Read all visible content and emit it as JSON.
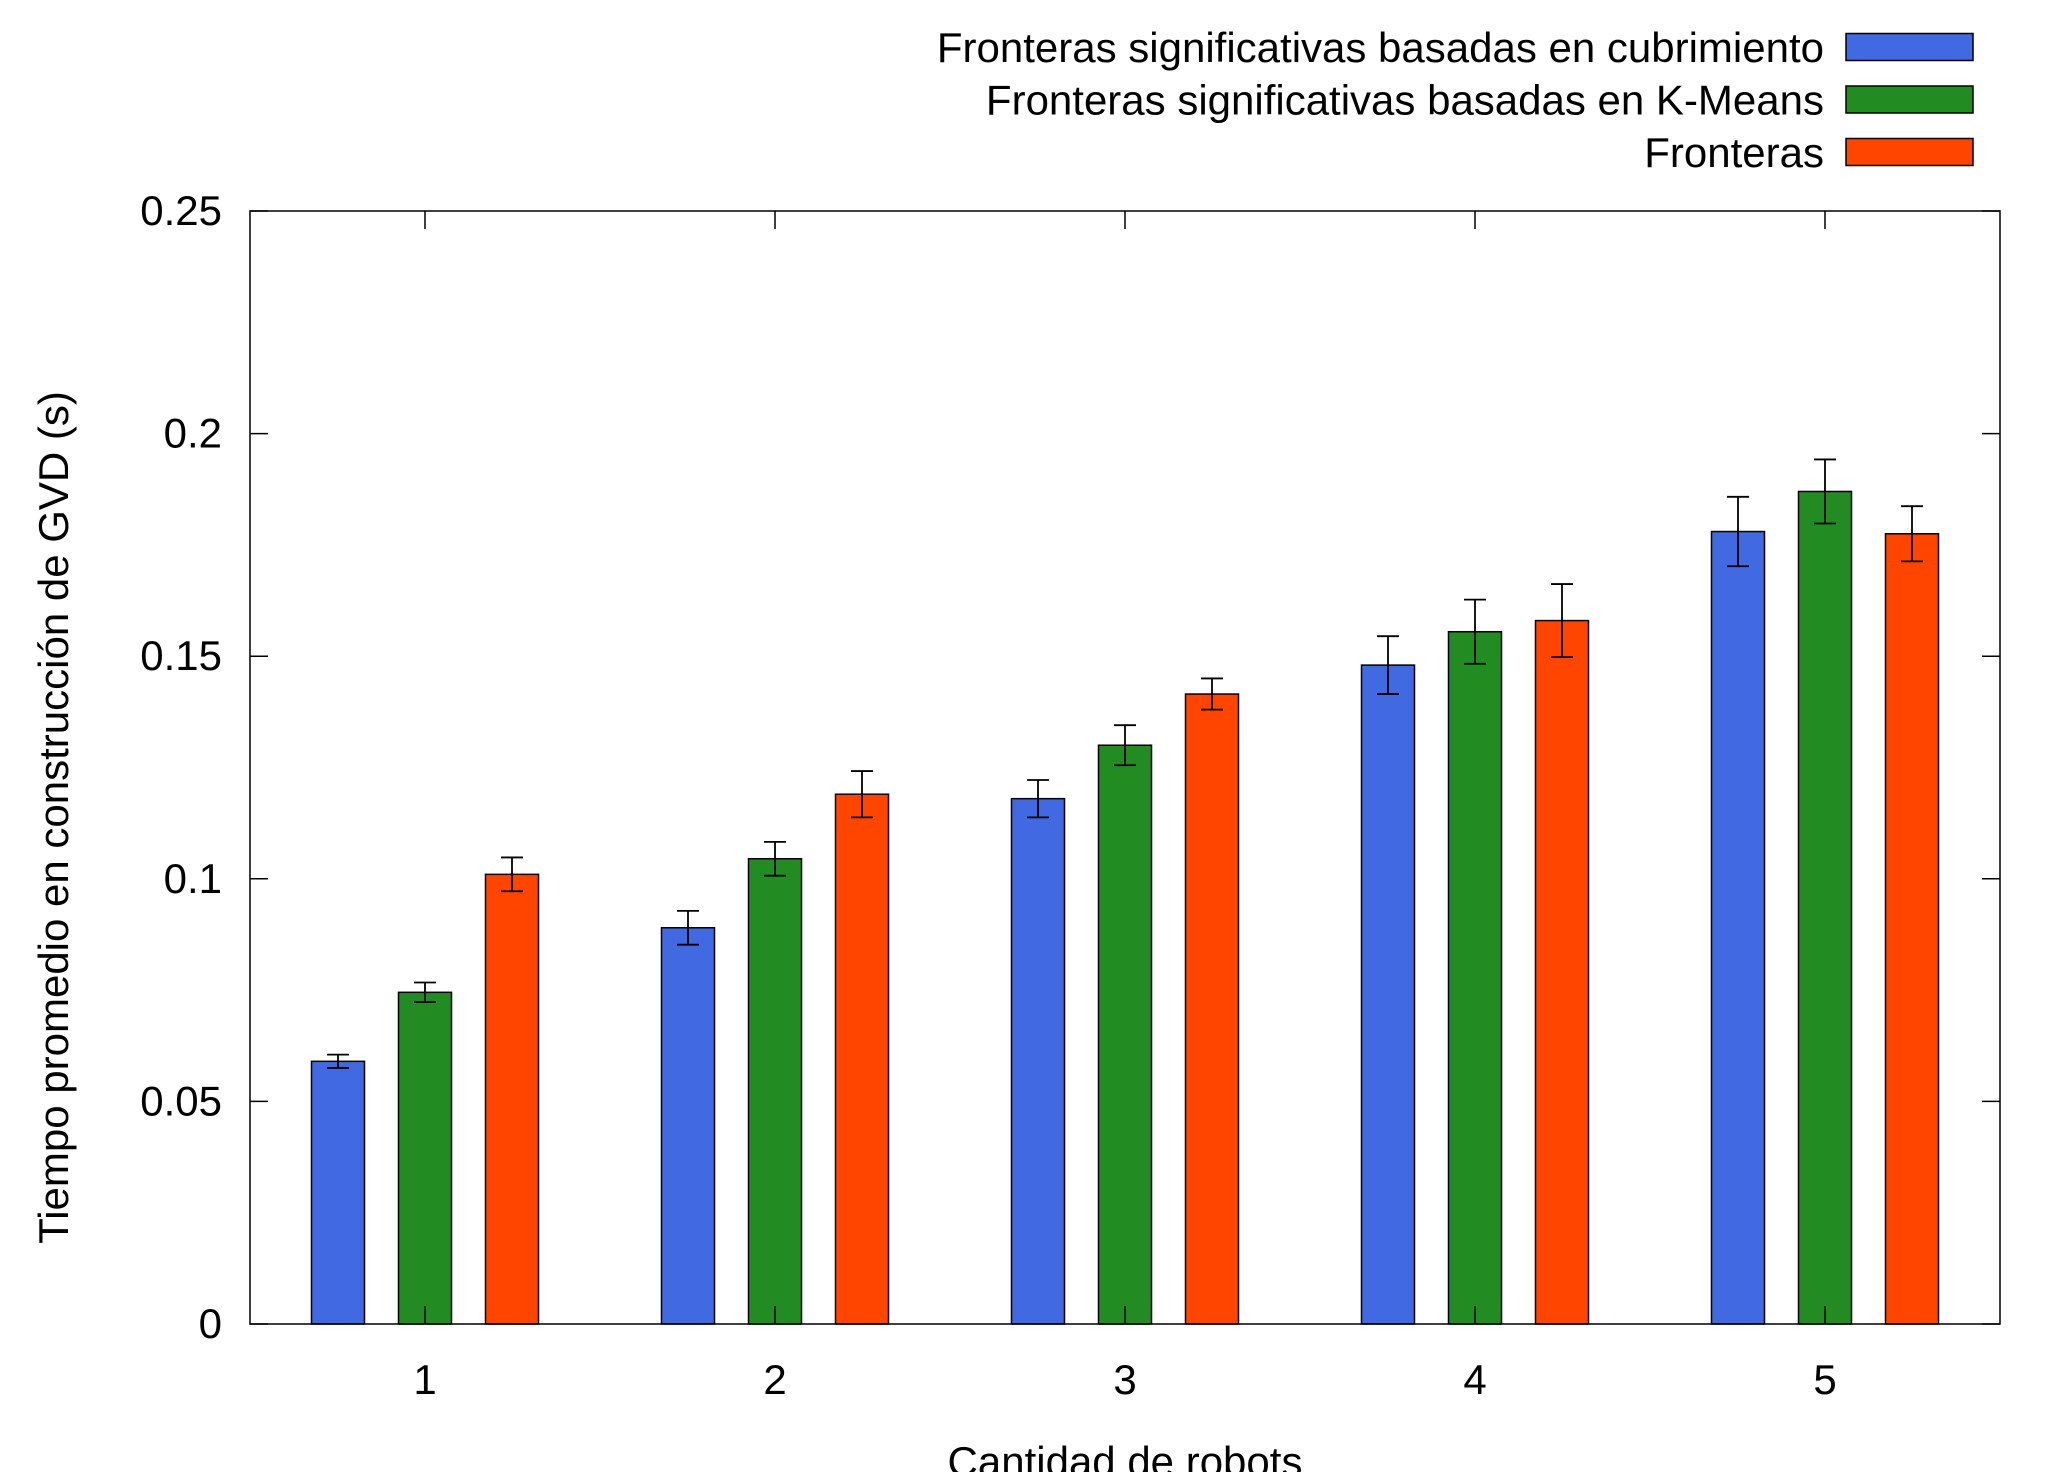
{
  "chart_data": {
    "type": "bar",
    "title": "",
    "xlabel": "Cantidad de robots",
    "ylabel": "Tiempo promedio en construcción de GVD (s)",
    "categories": [
      "1",
      "2",
      "3",
      "4",
      "5"
    ],
    "ylim": [
      0,
      0.25
    ],
    "yticks": [
      0,
      0.05,
      0.1,
      0.15,
      0.2,
      0.25
    ],
    "ytick_labels": [
      "0",
      "0.05",
      "0.1",
      "0.15",
      "0.2",
      "0.25"
    ],
    "grid": false,
    "legend_position": "top-right",
    "error_bars": true,
    "series": [
      {
        "name": "Fronteras significativas basadas en cubrimiento",
        "color": "#4169e1",
        "values": [
          0.059,
          0.089,
          0.118,
          0.148,
          0.178
        ],
        "errors": [
          0.0015,
          0.0038,
          0.0042,
          0.0065,
          0.0078
        ]
      },
      {
        "name": "Fronteras significativas basadas en K-Means",
        "color": "#228b22",
        "values": [
          0.0745,
          0.1045,
          0.13,
          0.1555,
          0.187
        ],
        "errors": [
          0.0022,
          0.0038,
          0.0045,
          0.0072,
          0.0072
        ]
      },
      {
        "name": "Fronteras",
        "color": "#ff4500",
        "values": [
          0.101,
          0.119,
          0.1415,
          0.158,
          0.1775
        ],
        "errors": [
          0.0038,
          0.0052,
          0.0035,
          0.0082,
          0.0062
        ]
      }
    ]
  }
}
